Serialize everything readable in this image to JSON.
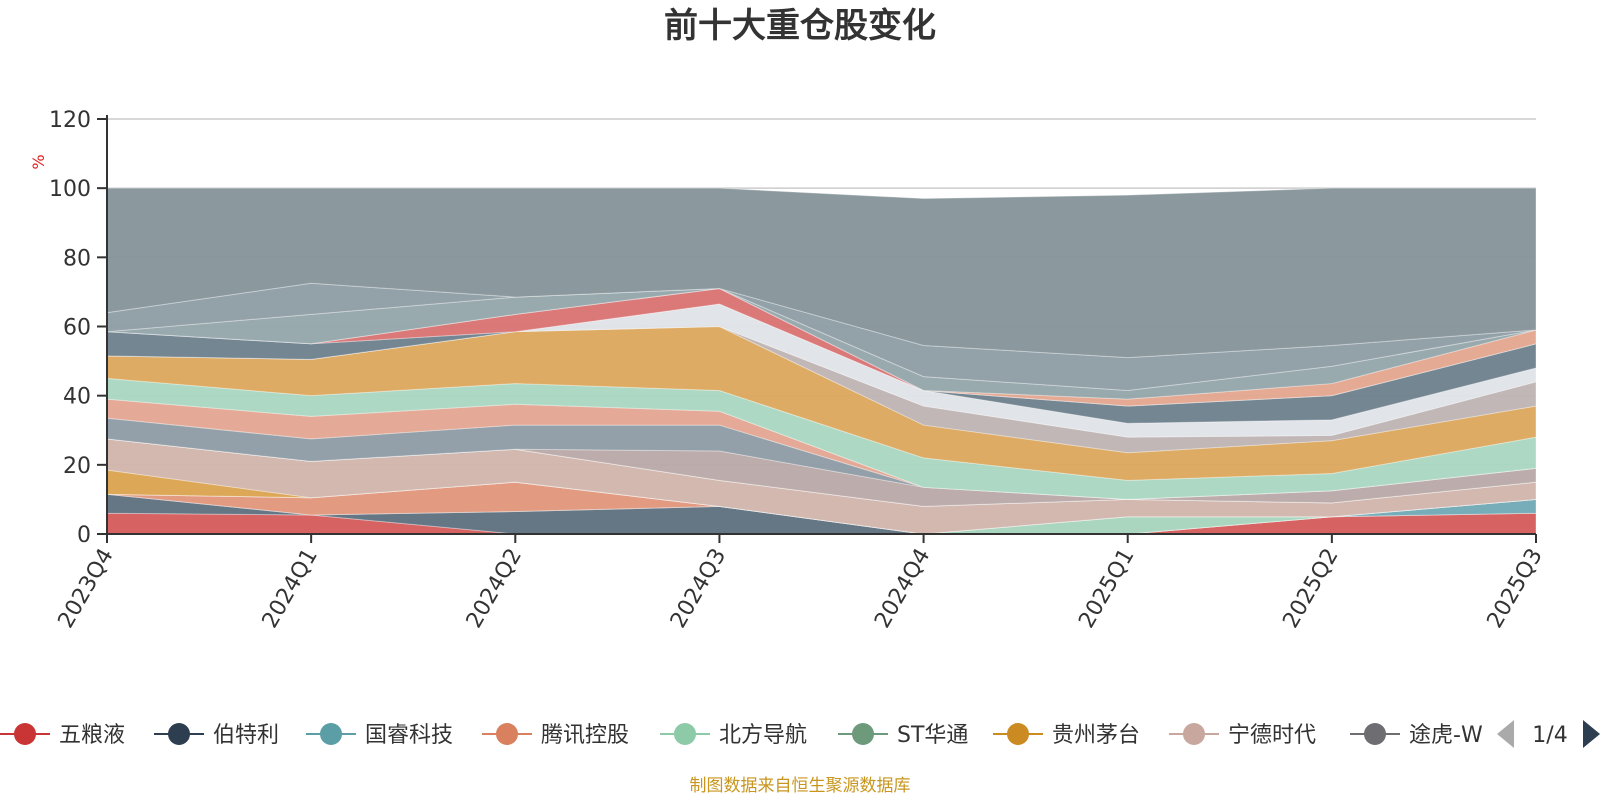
{
  "chart_data": {
    "type": "area",
    "stacked": true,
    "title": "前十大重仓股变化",
    "ylabel": "%",
    "ylim": [
      0,
      120
    ],
    "yticks": [
      0,
      20,
      40,
      60,
      80,
      100,
      120
    ],
    "grid": true,
    "categories": [
      "2023Q4",
      "2024Q1",
      "2024Q2",
      "2024Q3",
      "2024Q4",
      "2025Q1",
      "2025Q2",
      "2025Q3"
    ],
    "series": [
      {
        "name": "五粮液",
        "color": "#d45a5a",
        "values": [
          6,
          5.5,
          0,
          0,
          0,
          0,
          5,
          6
        ]
      },
      {
        "name": "伯特利",
        "color": "#5d6f7d",
        "values": [
          5.5,
          0,
          6.5,
          8,
          0,
          0,
          0,
          0
        ]
      },
      {
        "name": "国睿科技",
        "color": "#6fa9b5",
        "values": [
          0,
          0,
          0,
          0,
          0,
          0,
          0,
          4
        ]
      },
      {
        "name": "腾讯控股",
        "color": "#e0957a",
        "values": [
          0,
          5,
          8.5,
          0,
          0,
          0,
          0,
          0
        ]
      },
      {
        "name": "北方导航",
        "color": "#a5d4bd",
        "values": [
          0,
          0,
          0,
          0,
          0,
          5,
          0,
          0
        ]
      },
      {
        "name": "ST华通",
        "color": "#86a98c",
        "values": [
          0,
          0,
          0,
          0,
          0,
          0,
          0,
          0
        ]
      },
      {
        "name": "贵州茅台",
        "color": "#daa24d",
        "values": [
          7,
          0,
          0,
          0,
          0,
          0,
          0,
          0
        ]
      },
      {
        "name": "宁德时代",
        "color": "#d0b4ab",
        "values": [
          9,
          10.5,
          9.5,
          7.5,
          8,
          5,
          4,
          5
        ]
      },
      {
        "name": "途虎-W",
        "color": "#8e8c8f",
        "values": [
          0,
          0,
          0,
          0,
          0,
          0,
          0,
          0
        ]
      }
    ],
    "legend_position": "bottom",
    "legend_page": "1/4",
    "legend_visible": [
      "五粮液",
      "伯特利",
      "国睿科技",
      "腾讯控股",
      "北方导航",
      "ST华通",
      "贵州茅台",
      "宁德时代",
      "途虎-W"
    ],
    "legend_markers": [
      "#c93535",
      "#2c3e50",
      "#5b9ea6",
      "#d9805f",
      "#8ccaa8",
      "#6e9a7c",
      "#cc8a22",
      "#c8a89e",
      "#6e6e72"
    ],
    "upper_layers": [
      {
        "color": "#6f7e8a",
        "values": [
          11.5,
          10.5,
          15,
          15.5,
          8,
          10,
          9,
          15
        ]
      },
      {
        "color": "#b8a8a6",
        "values": [
          27,
          21,
          24,
          24,
          13.5,
          10,
          12.5,
          19
        ]
      },
      {
        "color": "#8e9ba4",
        "values": [
          33.5,
          27.5,
          31.5,
          31.5,
          13.5,
          10,
          12.5,
          19
        ]
      },
      {
        "color": "#e3a591",
        "values": [
          39,
          34,
          37.5,
          35.5,
          13.5,
          10,
          12.5,
          19
        ]
      },
      {
        "color": "#a9d7c1",
        "values": [
          45,
          40,
          43.5,
          41.5,
          22,
          15.5,
          17.5,
          28
        ]
      },
      {
        "color": "#dba65c",
        "values": [
          51.5,
          50.5,
          58.5,
          60,
          31.5,
          23.5,
          27,
          37
        ]
      },
      {
        "color": "#bdb3b2",
        "values": [
          51.5,
          50.5,
          58.5,
          60,
          37,
          28,
          28.5,
          44
        ]
      },
      {
        "color": "#dfe3e8",
        "values": [
          51.5,
          50.5,
          58.5,
          66.5,
          41.5,
          32,
          33,
          48
        ]
      },
      {
        "color": "#6e7f8d",
        "values": [
          58.5,
          55,
          58.5,
          66.5,
          41.5,
          37,
          40,
          55
        ]
      },
      {
        "color": "#d97272",
        "values": [
          58.5,
          55,
          63.5,
          71,
          41.5,
          37,
          40,
          55
        ]
      },
      {
        "color": "#e4a58d",
        "values": [
          58.5,
          55,
          63.5,
          71,
          41.5,
          39,
          43.5,
          59
        ]
      },
      {
        "color": "#94a5aa",
        "values": [
          58.5,
          63.5,
          68.5,
          71,
          45.5,
          41.5,
          48.5,
          59
        ]
      },
      {
        "color": "#8d9ca3",
        "values": [
          64,
          72.5,
          68.5,
          71,
          54.5,
          51,
          54.5,
          59
        ]
      },
      {
        "color": "#85939a",
        "values": [
          100,
          100,
          100,
          100,
          97,
          98,
          100,
          100
        ]
      }
    ],
    "source": "制图数据来自恒生聚源数据库"
  }
}
